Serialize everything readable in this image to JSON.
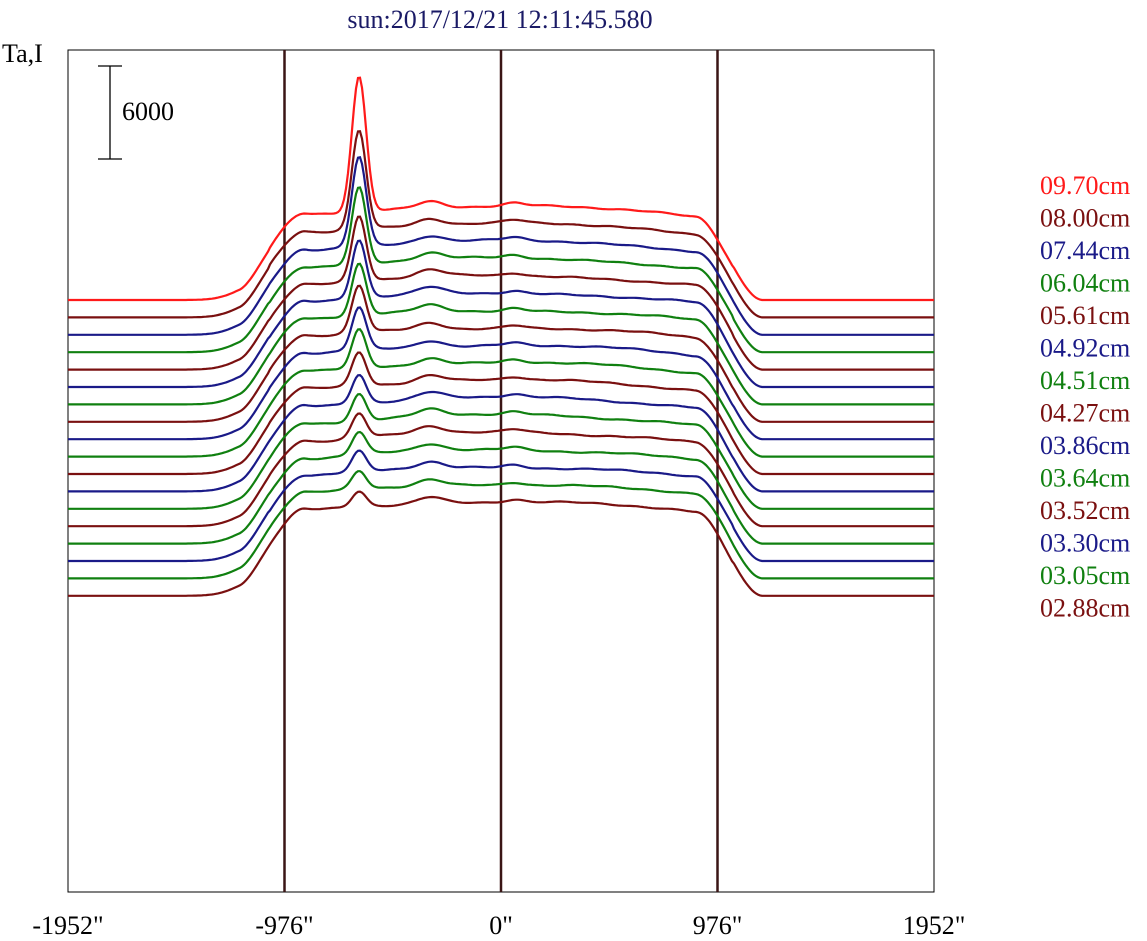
{
  "chart_data": {
    "type": "line",
    "title": "sun:2017/12/21 12:11:45.580",
    "ylabel": "Ta,I",
    "xlabel": "",
    "xlim": [
      -1952,
      1952
    ],
    "x_ticks": [
      -1952,
      -976,
      0,
      976,
      1952
    ],
    "x_tick_labels": [
      "-1952\"",
      "-976\"",
      "0\"",
      "976\"",
      "1952\""
    ],
    "vertical_lines": [
      -976,
      0,
      976
    ],
    "scale_bar": {
      "value": 6000,
      "label": "6000"
    },
    "grid": false,
    "legend_position": "right",
    "colors": {
      "red": "#ff1a1a",
      "maroon": "#7a1010",
      "navy": "#1a1a88",
      "green": "#108010",
      "ref_line": "#3a1515"
    },
    "series": [
      {
        "name": "09.70cm",
        "color": "#ff1a1a",
        "peak": 3.0,
        "offset": 0
      },
      {
        "name": "08.00cm",
        "color": "#7a1010",
        "peak": 2.2,
        "offset": 1
      },
      {
        "name": "07.44cm",
        "color": "#1a1a88",
        "peak": 2.0,
        "offset": 2
      },
      {
        "name": "06.04cm",
        "color": "#108010",
        "peak": 1.7,
        "offset": 3
      },
      {
        "name": "05.61cm",
        "color": "#7a1010",
        "peak": 1.45,
        "offset": 4
      },
      {
        "name": "04.92cm",
        "color": "#1a1a88",
        "peak": 1.3,
        "offset": 5
      },
      {
        "name": "04.51cm",
        "color": "#108010",
        "peak": 1.15,
        "offset": 6
      },
      {
        "name": "04.27cm",
        "color": "#7a1010",
        "peak": 1.05,
        "offset": 7
      },
      {
        "name": "03.86cm",
        "color": "#1a1a88",
        "peak": 0.95,
        "offset": 8
      },
      {
        "name": "03.64cm",
        "color": "#108010",
        "peak": 0.85,
        "offset": 9
      },
      {
        "name": "03.52cm",
        "color": "#7a1010",
        "peak": 0.75,
        "offset": 10
      },
      {
        "name": "03.30cm",
        "color": "#1a1a88",
        "peak": 0.65,
        "offset": 11
      },
      {
        "name": "03.05cm",
        "color": "#108010",
        "peak": 0.6,
        "offset": 12
      },
      {
        "name": "02.88cm",
        "color": "#7a1010",
        "peak": 0.55,
        "offset": 13
      },
      {
        "name": "",
        "color": "#108010",
        "peak": 0.5,
        "offset": 14
      },
      {
        "name": "",
        "color": "#1a1a88",
        "peak": 0.45,
        "offset": 15
      },
      {
        "name": "",
        "color": "#108010",
        "peak": 0.4,
        "offset": 16
      },
      {
        "name": "",
        "color": "#7a1010",
        "peak": 0.35,
        "offset": 17
      }
    ]
  }
}
